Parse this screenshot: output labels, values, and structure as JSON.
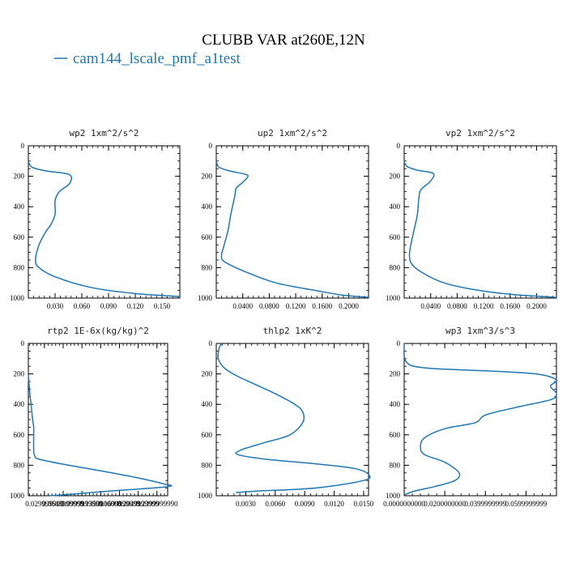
{
  "figure_title": "CLUBB VAR at260E,12N",
  "legend_label": "cam144_lscale_pmf_a1test",
  "colors": {
    "line": "#1f77b4",
    "axis": "#000000",
    "legend": "#1f77b4"
  },
  "chart_data": [
    {
      "type": "line",
      "title": "wp2  1xm^2/s^2",
      "xlim": [
        0,
        0.17
      ],
      "ylim": [
        1000,
        0
      ],
      "yticks": [
        0,
        200,
        400,
        600,
        800,
        1000
      ],
      "xticks": [
        0.03,
        0.06,
        0.09,
        0.12,
        0.15
      ],
      "xtick_labels": [
        "0.030",
        "0.060",
        "0.090",
        "0.120",
        "0.150"
      ],
      "series": [
        {
          "name": "cam144_lscale_pmf_a1test",
          "x": [
            0.0,
            0.004,
            0.02,
            0.04,
            0.048,
            0.046,
            0.035,
            0.03,
            0.03,
            0.025,
            0.02,
            0.012,
            0.008,
            0.012,
            0.03,
            0.07,
            0.12,
            0.17
          ],
          "y": [
            100,
            140,
            165,
            180,
            200,
            250,
            300,
            360,
            450,
            520,
            560,
            650,
            750,
            800,
            860,
            930,
            970,
            990
          ]
        }
      ]
    },
    {
      "type": "line",
      "title": "up2  1xm^2/s^2",
      "xlim": [
        0,
        0.23
      ],
      "ylim": [
        1000,
        0
      ],
      "yticks": [
        0,
        200,
        400,
        600,
        800,
        1000
      ],
      "xticks": [
        0.04,
        0.08,
        0.12,
        0.16,
        0.2
      ],
      "xtick_labels": [
        "0.0400",
        "0.0800",
        "0.1200",
        "0.1600",
        "0.2000"
      ],
      "series": [
        {
          "name": "cam144_lscale_pmf_a1test",
          "x": [
            0.0,
            0.004,
            0.02,
            0.042,
            0.048,
            0.04,
            0.03,
            0.028,
            0.022,
            0.018,
            0.012,
            0.008,
            0.012,
            0.04,
            0.09,
            0.15,
            0.19,
            0.23
          ],
          "y": [
            100,
            140,
            165,
            185,
            200,
            240,
            280,
            330,
            450,
            550,
            650,
            720,
            760,
            820,
            900,
            950,
            980,
            995
          ]
        }
      ]
    },
    {
      "type": "line",
      "title": "vp2  1xm^2/s^2",
      "xlim": [
        0,
        0.23
      ],
      "ylim": [
        1000,
        0
      ],
      "yticks": [
        0,
        200,
        400,
        600,
        800,
        1000
      ],
      "xticks": [
        0.04,
        0.08,
        0.12,
        0.16,
        0.2
      ],
      "xtick_labels": [
        "0.0400",
        "0.0800",
        "0.1200",
        "0.1600",
        "0.2000"
      ],
      "series": [
        {
          "name": "cam144_lscale_pmf_a1test",
          "x": [
            0.0,
            0.004,
            0.02,
            0.04,
            0.045,
            0.038,
            0.025,
            0.022,
            0.02,
            0.015,
            0.01,
            0.008,
            0.012,
            0.03,
            0.06,
            0.1,
            0.16,
            0.23
          ],
          "y": [
            100,
            135,
            160,
            175,
            195,
            240,
            290,
            350,
            450,
            550,
            650,
            720,
            780,
            840,
            900,
            940,
            975,
            995
          ]
        }
      ]
    },
    {
      "type": "line",
      "title": "rtp2  1E-6x(kg/kg)^2",
      "xlim": [
        0,
        0.26
      ],
      "ylim": [
        1000,
        0
      ],
      "yticks": [
        0,
        200,
        400,
        600,
        800,
        1000
      ],
      "xticks": [
        0.03,
        0.065,
        0.1,
        0.135,
        0.17,
        0.205,
        0.24
      ],
      "xtick_labels": [
        "0.029999999",
        "0.0649999999",
        "0.0999999999",
        "0.1350000000",
        "0.1699999999",
        "0.2049999999",
        "0.2399999990"
      ],
      "series": [
        {
          "name": "cam144_lscale_pmf_a1test",
          "x": [
            0.0,
            0.002,
            0.005,
            0.008,
            0.01,
            0.01,
            0.01,
            0.012,
            0.02,
            0.06,
            0.14,
            0.2,
            0.25,
            0.26,
            0.15,
            0.08,
            0.04
          ],
          "y": [
            200,
            300,
            400,
            500,
            550,
            600,
            700,
            740,
            760,
            790,
            840,
            880,
            920,
            940,
            970,
            990,
            1000
          ]
        }
      ]
    },
    {
      "type": "line",
      "title": "thlp2  1xK^2",
      "xlim": [
        0,
        0.0155
      ],
      "ylim": [
        1000,
        0
      ],
      "yticks": [
        0,
        200,
        400,
        600,
        800,
        1000
      ],
      "xticks": [
        0.003,
        0.006,
        0.009,
        0.012,
        0.015
      ],
      "xtick_labels": [
        "0.0030",
        "0.0060",
        "0.0090",
        "0.0120",
        "0.0150"
      ],
      "series": [
        {
          "name": "cam144_lscale_pmf_a1test",
          "x": [
            0.0005,
            0.0003,
            0.0002,
            0.0008,
            0.002,
            0.004,
            0.006,
            0.008,
            0.0088,
            0.0088,
            0.0075,
            0.005,
            0.0025,
            0.0022,
            0.005,
            0.01,
            0.014,
            0.0155,
            0.015,
            0.01,
            0.004,
            0.002
          ],
          "y": [
            5,
            30,
            100,
            160,
            210,
            270,
            330,
            400,
            450,
            520,
            600,
            650,
            700,
            730,
            760,
            790,
            820,
            860,
            900,
            950,
            970,
            980
          ]
        }
      ]
    },
    {
      "type": "line",
      "title": "wp3  1xm^3/s^3",
      "xlim": [
        0,
        0.075
      ],
      "ylim": [
        1000,
        0
      ],
      "yticks": [
        0,
        200,
        400,
        600,
        800,
        1000
      ],
      "xticks": [
        0.0,
        0.02,
        0.04,
        0.06
      ],
      "xtick_labels": [
        "0.0000000000",
        "0.0200000000",
        "0.0399999999",
        "0.0599999999"
      ],
      "series": [
        {
          "name": "cam144_lscale_pmf_a1test",
          "x": [
            0.0,
            0.001,
            0.01,
            0.04,
            0.065,
            0.075,
            0.072,
            0.075,
            0.072,
            0.055,
            0.04,
            0.035,
            0.02,
            0.01,
            0.008,
            0.01,
            0.02,
            0.027,
            0.025,
            0.015,
            0.005,
            0.0
          ],
          "y": [
            0,
            120,
            160,
            180,
            200,
            240,
            280,
            330,
            370,
            420,
            470,
            520,
            560,
            620,
            680,
            730,
            780,
            850,
            900,
            940,
            970,
            995
          ]
        }
      ]
    }
  ]
}
